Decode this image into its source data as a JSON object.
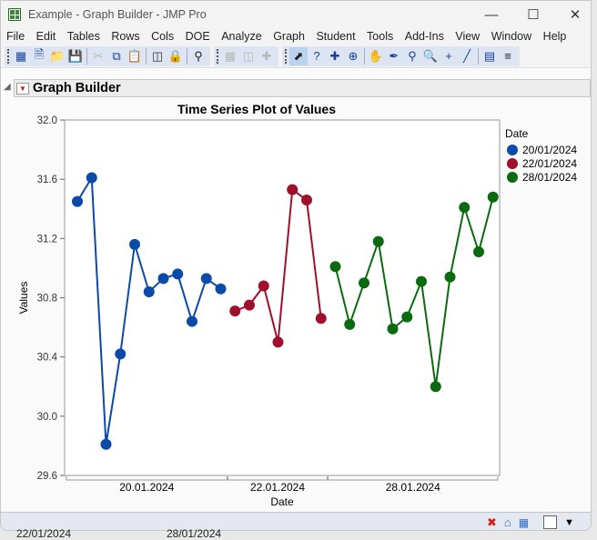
{
  "window": {
    "title": "Example - Graph Builder - JMP Pro"
  },
  "menu": [
    "File",
    "Edit",
    "Tables",
    "Rows",
    "Cols",
    "DOE",
    "Analyze",
    "Graph",
    "Student",
    "Tools",
    "Add-Ins",
    "View",
    "Window",
    "Help"
  ],
  "report": {
    "title": "Graph Builder"
  },
  "background_rows": [
    "22/01/2024",
    "28/01/2024"
  ],
  "chart_data": {
    "type": "line",
    "title": "Time Series Plot of Values",
    "xlabel": "Date",
    "ylabel": "Values",
    "ylim": [
      29.6,
      32.0
    ],
    "yticks": [
      "29.6",
      "30.0",
      "30.4",
      "30.8",
      "31.2",
      "31.6",
      "32.0"
    ],
    "grid": false,
    "legend": {
      "title": "Date",
      "placement": "right"
    },
    "groups": [
      "20.01.2024",
      "22.01.2024",
      "28.01.2024"
    ],
    "series": [
      {
        "name": "20/01/2024",
        "color": "#0a4aa8",
        "values": [
          31.45,
          31.61,
          29.81,
          30.42,
          31.16,
          30.84,
          30.93,
          30.96,
          30.64,
          30.93,
          30.86
        ]
      },
      {
        "name": "22/01/2024",
        "color": "#a0102a",
        "values": [
          30.71,
          30.75,
          30.88,
          30.5,
          31.53,
          31.46,
          30.66
        ]
      },
      {
        "name": "28/01/2024",
        "color": "#0a6a10",
        "values": [
          31.01,
          30.62,
          30.9,
          31.18,
          30.59,
          30.67,
          30.91,
          30.2,
          30.94,
          31.41,
          31.11,
          31.48
        ]
      }
    ]
  }
}
